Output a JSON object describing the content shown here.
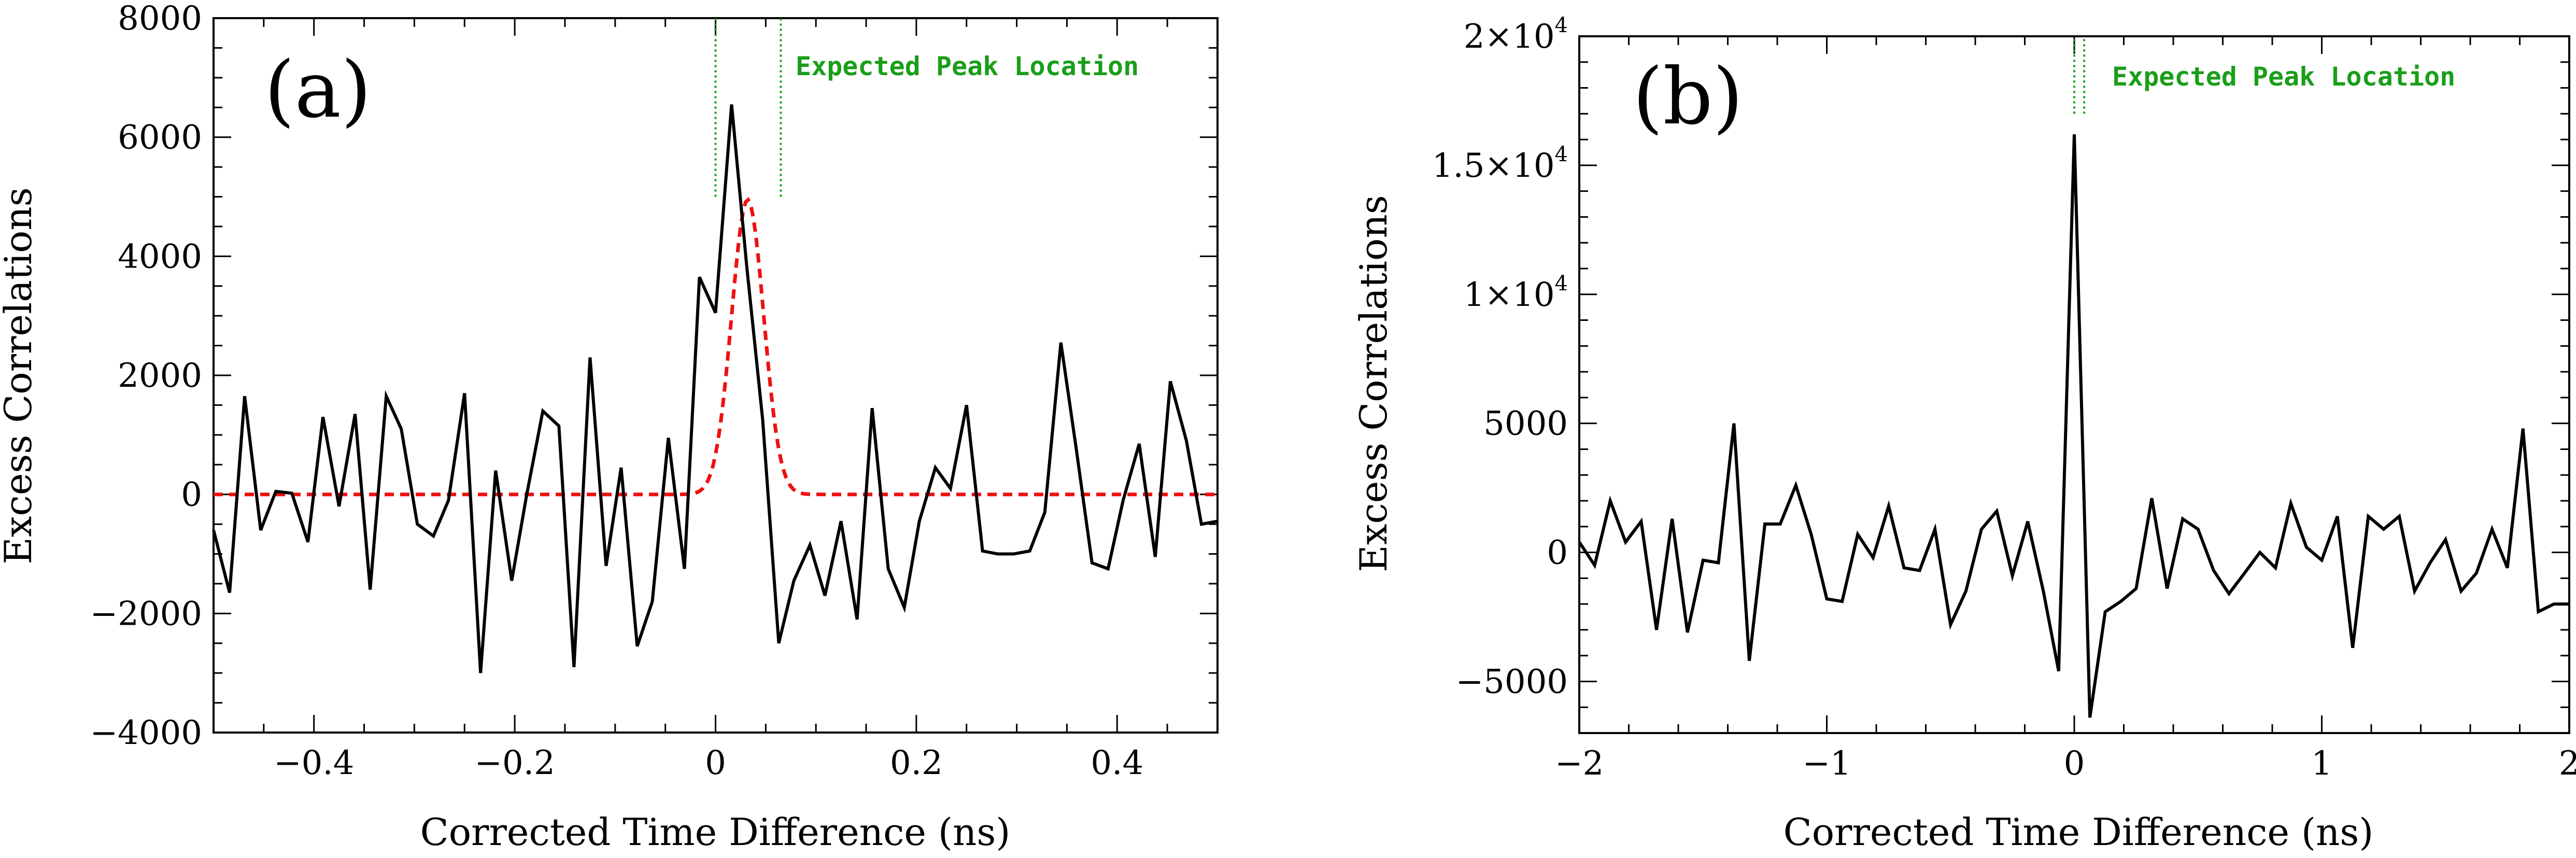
{
  "colors": {
    "data_line": "#000000",
    "fit_line": "#ee1111",
    "marker": "#1a9e1a"
  },
  "chart_data": [
    {
      "id": "a",
      "type": "line",
      "panel_label": "(a)",
      "xlabel": "Corrected Time Difference (ns)",
      "ylabel": "Excess Correlations",
      "xlim": [
        -0.5,
        0.5
      ],
      "ylim": [
        -4000,
        8000
      ],
      "x_ticks": [
        -0.4,
        -0.2,
        0,
        0.2,
        0.4
      ],
      "x_tick_labels": [
        "−0.4",
        "−0.2",
        "0",
        "0.2",
        "0.4"
      ],
      "x_minor_step": 0.05,
      "y_ticks": [
        -4000,
        -2000,
        0,
        2000,
        4000,
        6000,
        8000
      ],
      "y_tick_labels": [
        "−4000",
        "−2000",
        "0",
        "2000",
        "4000",
        "6000",
        "8000"
      ],
      "y_minor_step": 500,
      "annotation": "Expected Peak Location",
      "marker_lines": [
        0.0,
        0.065
      ],
      "marker_y_range": [
        5000,
        8000
      ],
      "fit": {
        "amplitude": 4950,
        "center": 0.032,
        "sigma": 0.016
      },
      "series": [
        {
          "name": "data",
          "x": [
            -0.5,
            -0.484,
            -0.469,
            -0.453,
            -0.438,
            -0.422,
            -0.406,
            -0.391,
            -0.375,
            -0.359,
            -0.344,
            -0.328,
            -0.313,
            -0.297,
            -0.281,
            -0.266,
            -0.25,
            -0.234,
            -0.219,
            -0.203,
            -0.188,
            -0.172,
            -0.156,
            -0.141,
            -0.125,
            -0.109,
            -0.094,
            -0.078,
            -0.063,
            -0.047,
            -0.031,
            -0.016,
            0.0,
            0.016,
            0.031,
            0.047,
            0.063,
            0.078,
            0.094,
            0.109,
            0.125,
            0.141,
            0.156,
            0.172,
            0.188,
            0.203,
            0.219,
            0.234,
            0.25,
            0.266,
            0.281,
            0.297,
            0.313,
            0.328,
            0.344,
            0.359,
            0.375,
            0.391,
            0.406,
            0.422,
            0.438,
            0.453,
            0.469,
            0.484,
            0.5
          ],
          "y": [
            -600,
            -1650,
            1650,
            -600,
            50,
            20,
            -800,
            1300,
            -200,
            1350,
            -1600,
            1650,
            1100,
            -500,
            -700,
            -100,
            1700,
            -3000,
            400,
            -1450,
            0,
            1400,
            1150,
            -2900,
            2300,
            -1200,
            450,
            -2550,
            -1800,
            950,
            -1250,
            3650,
            3050,
            6550,
            3850,
            1250,
            -2500,
            -1450,
            -850,
            -1700,
            -450,
            -2100,
            1450,
            -1250,
            -1900,
            -450,
            450,
            100,
            1500,
            -950,
            -1000,
            -1000,
            -950,
            -300,
            2550,
            800,
            -1150,
            -1250,
            -100,
            850,
            -1050,
            1900,
            900,
            -500,
            -450
          ]
        }
      ]
    },
    {
      "id": "b",
      "type": "line",
      "panel_label": "(b)",
      "xlabel": "Corrected Time Difference (ns)",
      "ylabel": "Excess Correlations",
      "xlim": [
        -2,
        2
      ],
      "ylim": [
        -7000,
        20000
      ],
      "x_ticks": [
        -2,
        -1,
        0,
        1,
        2
      ],
      "x_tick_labels": [
        "−2",
        "−1",
        "0",
        "1",
        "2"
      ],
      "x_minor_step": 0.2,
      "y_ticks": [
        -5000,
        0,
        5000,
        10000,
        15000,
        20000
      ],
      "y_tick_labels": [
        {
          "mantissa": "−5000",
          "exp": ""
        },
        {
          "mantissa": "0",
          "exp": ""
        },
        {
          "mantissa": "5000",
          "exp": ""
        },
        {
          "mantissa": "1×10",
          "exp": "4"
        },
        {
          "mantissa": "1.5×10",
          "exp": "4"
        },
        {
          "mantissa": "2×10",
          "exp": "4"
        }
      ],
      "y_minor_step": 1000,
      "annotation": "Expected Peak Location",
      "marker_lines": [
        0.0,
        0.04
      ],
      "marker_y_range": [
        17000,
        20000
      ],
      "series": [
        {
          "name": "data",
          "x": [
            -2.0,
            -1.938,
            -1.875,
            -1.813,
            -1.75,
            -1.688,
            -1.625,
            -1.563,
            -1.5,
            -1.438,
            -1.375,
            -1.313,
            -1.25,
            -1.188,
            -1.125,
            -1.063,
            -1.0,
            -0.938,
            -0.875,
            -0.813,
            -0.75,
            -0.688,
            -0.625,
            -0.563,
            -0.5,
            -0.438,
            -0.375,
            -0.313,
            -0.25,
            -0.188,
            -0.125,
            -0.063,
            0.0,
            0.063,
            0.125,
            0.188,
            0.25,
            0.313,
            0.375,
            0.438,
            0.5,
            0.563,
            0.625,
            0.688,
            0.75,
            0.813,
            0.875,
            0.938,
            1.0,
            1.063,
            1.125,
            1.188,
            1.25,
            1.313,
            1.375,
            1.438,
            1.5,
            1.563,
            1.625,
            1.688,
            1.75,
            1.813,
            1.875,
            1.938,
            2.0
          ],
          "y": [
            400,
            -500,
            2000,
            400,
            1200,
            -3000,
            1300,
            -3100,
            -300,
            -400,
            5000,
            -4200,
            1100,
            1100,
            2600,
            700,
            -1800,
            -1900,
            700,
            -200,
            1800,
            -600,
            -700,
            900,
            -2800,
            -1500,
            900,
            1600,
            -900,
            1200,
            -1500,
            -4600,
            16200,
            -6400,
            -2300,
            -1900,
            -1400,
            2100,
            -1400,
            1300,
            900,
            -700,
            -1600,
            -800,
            0,
            -600,
            1900,
            200,
            -300,
            1400,
            -3700,
            1400,
            900,
            1400,
            -1500,
            -400,
            500,
            -1500,
            -800,
            900,
            -600,
            4800,
            -2300,
            -2000,
            -2000
          ]
        }
      ]
    }
  ]
}
